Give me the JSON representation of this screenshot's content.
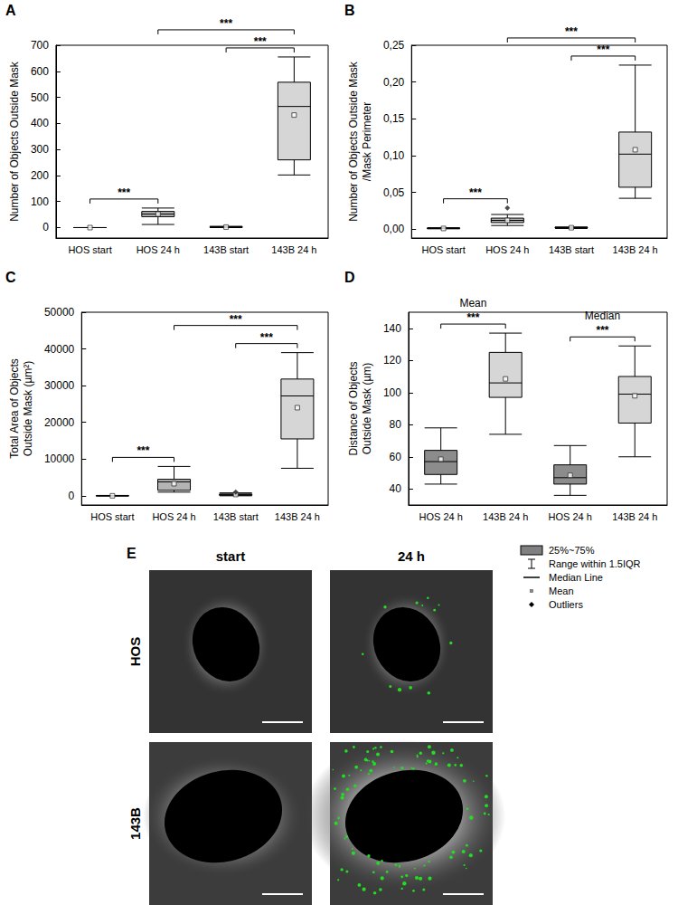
{
  "chart_data": [
    {
      "panel": "A",
      "type": "boxplot",
      "y_label": "Number of Objects Outside Mask",
      "categories": [
        "HOS start",
        "HOS 24 h",
        "143B start",
        "143B 24 h"
      ],
      "values": [
        [
          0,
          0,
          0,
          0,
          0
        ],
        [
          12,
          42,
          52,
          62,
          75
        ],
        [
          0,
          1,
          2,
          3,
          5
        ],
        [
          202,
          260,
          465,
          558,
          655
        ]
      ],
      "means": [
        0,
        52,
        2,
        432
      ],
      "outliers": [
        [],
        [],
        [],
        []
      ],
      "colors": [
        "#b4b4b4",
        "#b4b4b4",
        "#d6d6d6",
        "#d6d6d6"
      ],
      "ylim": [
        -40,
        700
      ],
      "yticks": [
        0,
        100,
        200,
        300,
        400,
        500,
        600,
        700
      ],
      "annotations": [
        {
          "from": 0,
          "to": 1,
          "label": "***"
        },
        {
          "from": 2,
          "to": 3,
          "label": "***"
        },
        {
          "from": 1,
          "to": 3,
          "label": "***"
        }
      ],
      "grid": false
    },
    {
      "panel": "B",
      "type": "boxplot",
      "y_label": "Number of Objects Outside Mask\n/Mask Perimeter",
      "categories": [
        "HOS start",
        "HOS 24 h",
        "143B start",
        "143B 24 h"
      ],
      "values": [
        [
          0.0005,
          0.001,
          0.001,
          0.0015,
          0.002
        ],
        [
          0.005,
          0.009,
          0.012,
          0.015,
          0.02
        ],
        [
          0.001,
          0.0015,
          0.002,
          0.0025,
          0.003
        ],
        [
          0.042,
          0.057,
          0.102,
          0.132,
          0.223
        ]
      ],
      "means": [
        0.001,
        0.012,
        0.002,
        0.108
      ],
      "outliers": [
        [],
        [
          0.029
        ],
        [],
        []
      ],
      "colors": [
        "#b4b4b4",
        "#b4b4b4",
        "#d6d6d6",
        "#d6d6d6"
      ],
      "ylim": [
        -0.012,
        0.25
      ],
      "yticks": [
        {
          "value": 0,
          "label": "0,00"
        },
        {
          "value": 0.05,
          "label": "0,05"
        },
        {
          "value": 0.1,
          "label": "0,10"
        },
        {
          "value": 0.15,
          "label": "0,15"
        },
        {
          "value": 0.2,
          "label": "0,20"
        },
        {
          "value": 0.25,
          "label": "0,25"
        }
      ],
      "annotations": [
        {
          "from": 0,
          "to": 1,
          "label": "***"
        },
        {
          "from": 2,
          "to": 3,
          "label": "***"
        },
        {
          "from": 1,
          "to": 3,
          "label": "***"
        }
      ],
      "grid": false
    },
    {
      "panel": "C",
      "type": "boxplot",
      "y_label": "Total Area of Objects Outside Mask (µm²)",
      "categories": [
        "HOS start",
        "HOS 24 h",
        "143B start",
        "143B 24 h"
      ],
      "values": [
        [
          0,
          0,
          0,
          0,
          100
        ],
        [
          1000,
          1500,
          3800,
          4500,
          8000
        ],
        [
          0,
          150,
          300,
          500,
          800
        ],
        [
          7500,
          15500,
          27200,
          31800,
          39000
        ]
      ],
      "means": [
        0,
        3300,
        350,
        24000
      ],
      "outliers": [
        [],
        [],
        [
          1000
        ],
        []
      ],
      "colors": [
        "#b4b4b4",
        "#b4b4b4",
        "#d6d6d6",
        "#d6d6d6"
      ],
      "ylim": [
        -2500,
        50000
      ],
      "yticks": [
        0,
        10000,
        20000,
        30000,
        40000,
        50000
      ],
      "annotations": [
        {
          "from": 0,
          "to": 1,
          "label": "***"
        },
        {
          "from": 2,
          "to": 3,
          "label": "***"
        },
        {
          "from": 1,
          "to": 3,
          "label": "***"
        }
      ],
      "grid": false
    },
    {
      "panel": "D",
      "type": "boxplot",
      "y_label": "Distance of Objects Outside Mask (µm)",
      "categories": [
        "HOS 24 h",
        "143B 24 h",
        "HOS 24 h",
        "143B 24 h"
      ],
      "groups": [
        "Mean",
        "Mean",
        "Median",
        "Median"
      ],
      "values": [
        [
          43,
          49,
          57,
          64,
          78
        ],
        [
          74,
          97,
          106,
          125,
          137
        ],
        [
          36,
          43,
          47,
          55,
          67
        ],
        [
          60,
          81,
          99,
          110,
          129
        ]
      ],
      "means": [
        58.5,
        108.5,
        48.5,
        98
      ],
      "outliers": [
        [],
        [],
        [],
        []
      ],
      "colors": [
        "#8c8c8c",
        "#d6d6d6",
        "#8c8c8c",
        "#d6d6d6"
      ],
      "ylim": [
        30,
        150
      ],
      "yticks": [
        40,
        60,
        80,
        100,
        120,
        140
      ],
      "annotations": [
        {
          "from": 0,
          "to": 1,
          "label": "***"
        },
        {
          "from": 2,
          "to": 3,
          "label": "***"
        }
      ],
      "grid": false
    }
  ],
  "box_legend": {
    "items": [
      {
        "label": "25%~75%",
        "marker": "box",
        "color": "#808080"
      },
      {
        "label": "Range within 1.5IQR",
        "marker": "whisker"
      },
      {
        "label": "Median Line",
        "marker": "line"
      },
      {
        "label": "Mean",
        "marker": "dot"
      },
      {
        "label": "Outliers",
        "marker": "diamond"
      }
    ]
  },
  "image_panel": {
    "panel": "E",
    "columns": [
      "start",
      "24 h"
    ],
    "rows": [
      "HOS",
      "143B"
    ]
  }
}
